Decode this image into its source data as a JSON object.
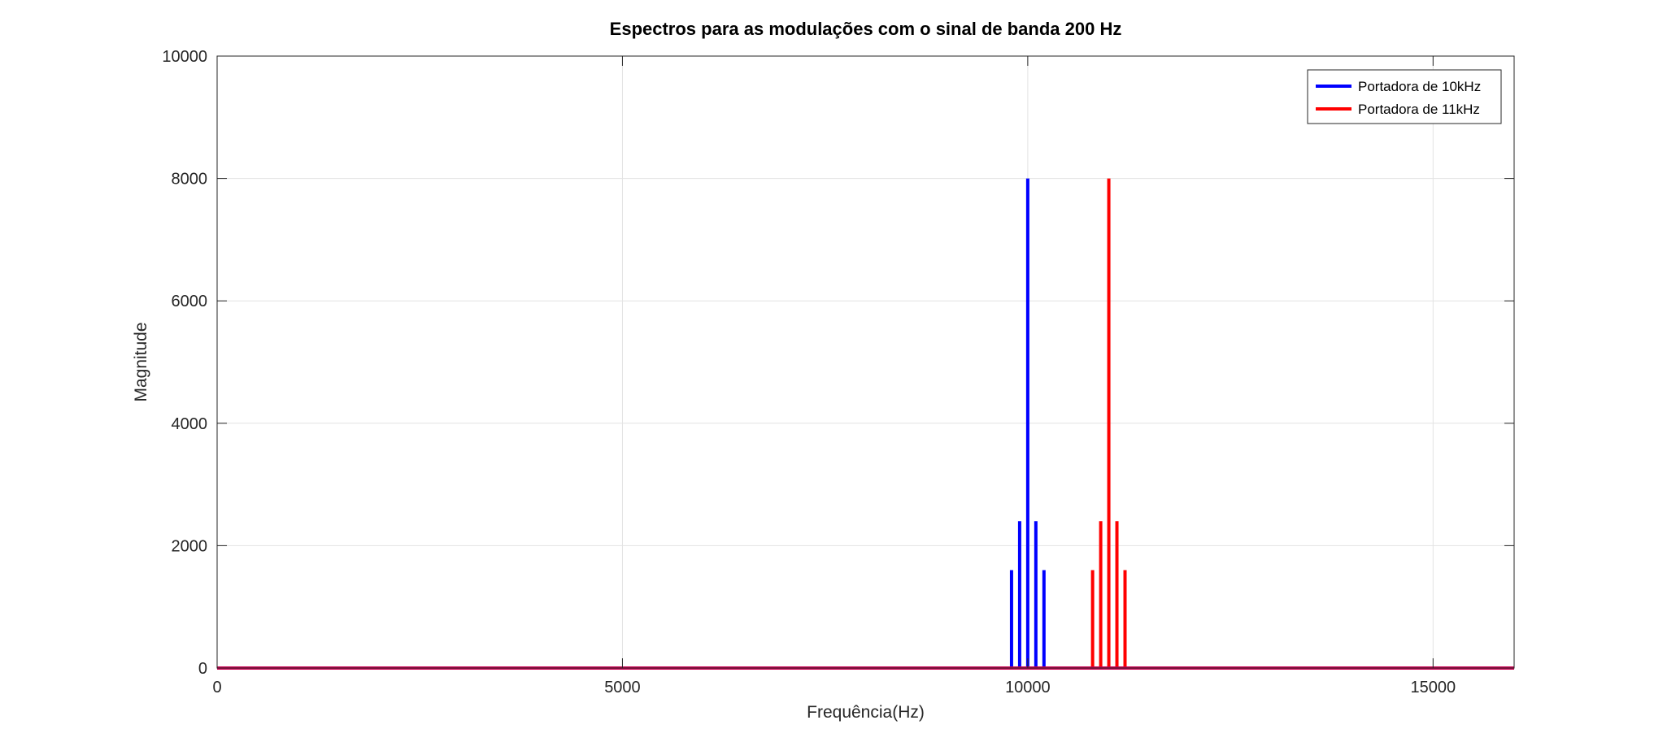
{
  "chart_data": {
    "type": "bar",
    "title": "Espectros para as modulações com o sinal de banda 200 Hz",
    "xlabel": "Frequência(Hz)",
    "ylabel": "Magnitude",
    "xlim": [
      0,
      16000
    ],
    "ylim": [
      0,
      10000
    ],
    "xticks": [
      0,
      5000,
      10000,
      15000
    ],
    "yticks": [
      0,
      2000,
      4000,
      6000,
      8000,
      10000
    ],
    "xtick_labels": [
      "0",
      "5000",
      "10000",
      "15000"
    ],
    "ytick_labels": [
      "0",
      "2000",
      "4000",
      "6000",
      "8000",
      "10000"
    ],
    "grid": true,
    "legend_position": "top-right",
    "series": [
      {
        "name": "Portadora de 10kHz",
        "color": "#0000ff",
        "x": [
          9800,
          9900,
          10000,
          10100,
          10200
        ],
        "values": [
          1600,
          2400,
          8000,
          2400,
          1600
        ]
      },
      {
        "name": "Portadora de 11kHz",
        "color": "#ff0000",
        "x": [
          10800,
          10900,
          11000,
          11100,
          11200
        ],
        "values": [
          1600,
          2400,
          8000,
          2400,
          1600
        ]
      }
    ],
    "baseline_color": "#cc0052"
  }
}
